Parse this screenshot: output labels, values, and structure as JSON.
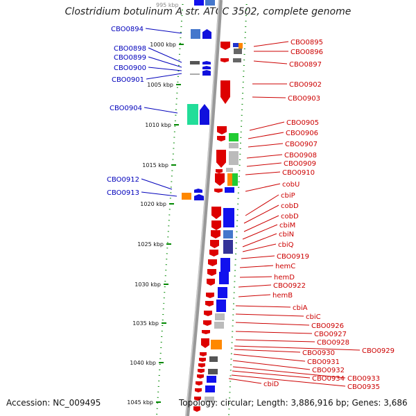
{
  "header": {
    "title": "Clostridium botulinum A str. ATCC 3502, complete genome",
    "top_tick": "995 kbp"
  },
  "footer": {
    "accession": "Accession: NC_009495",
    "topology": "Topology: circular; Length: 3,886,916 bp; Genes: 3,686"
  },
  "colors": {
    "strand_minus": "#dd0000",
    "strand_plus": "#1010dd",
    "label_minus": "#cc0000",
    "label_plus": "#0000bb",
    "backbone": "#888888",
    "tick": "#008800"
  },
  "scale_ticks": [
    "1000 kbp",
    "1005 kbp",
    "1010 kbp",
    "1015 kbp",
    "1020 kbp",
    "1025 kbp",
    "1030 kbp",
    "1035 kbp",
    "1040 kbp",
    "1045 kbp"
  ],
  "genes_left": [
    "CBO0894",
    "CBO0898",
    "CBO0899",
    "CBO0900",
    "CBO0901",
    "CBO0904",
    "CBO0912",
    "CBO0913"
  ],
  "genes_right": [
    "CBO0895",
    "CBO0896",
    "CBO0897",
    "CBO0902",
    "CBO0903",
    "CBO0905",
    "CBO0906",
    "CBO0907",
    "CBO0908",
    "CBO0909",
    "CBO0910",
    "cobU",
    "cbiP",
    "cobD",
    "cobD",
    "cbiM",
    "cbiN",
    "cbiQ",
    "CBO0919",
    "hemC",
    "hemD",
    "CBO0922",
    "hemB",
    "cbiA",
    "cbiC",
    "CBO0926",
    "CBO0927",
    "CBO0928",
    "CBO0929",
    "CBO0930",
    "CBO0931",
    "CBO0932",
    "CBO0933",
    "CBO0934",
    "CBO0935",
    "cbiD"
  ]
}
